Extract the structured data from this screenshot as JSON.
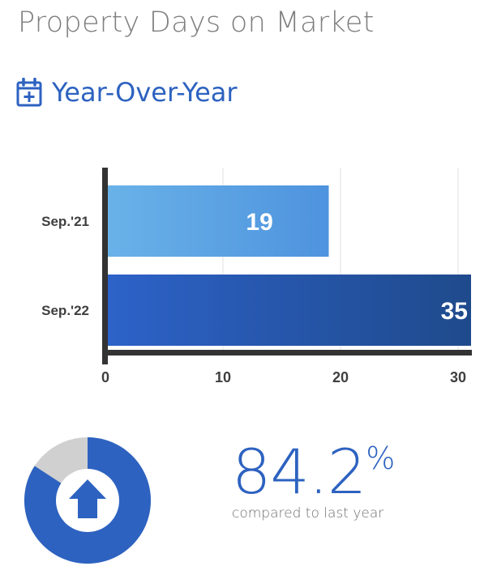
{
  "header": {
    "title": "Property Days on Market"
  },
  "section": {
    "title": "Year-Over-Year",
    "icon": "calendar-plus-icon"
  },
  "chart_data": {
    "type": "bar",
    "orientation": "horizontal",
    "categories": [
      "Sep.'21",
      "Sep.'22"
    ],
    "values": [
      19,
      35
    ],
    "data_labels": [
      "19",
      "35"
    ],
    "xlim": [
      0,
      31
    ],
    "xticks": [
      0,
      10,
      20,
      30
    ],
    "xtick_labels": [
      "0",
      "10",
      "20",
      "30"
    ],
    "grid": true,
    "colors": [
      [
        "#69b2e8",
        "#4e93de"
      ],
      [
        "#2d62c8",
        "#1f4a8c"
      ]
    ]
  },
  "summary": {
    "change_value": "84.2",
    "change_unit": "%",
    "change_fraction": 0.842,
    "direction": "up",
    "icon": "arrow-up-icon",
    "label": "compared to last year",
    "colors": {
      "accent": "#2d62c0",
      "neutral": "#d0d0d0"
    }
  }
}
